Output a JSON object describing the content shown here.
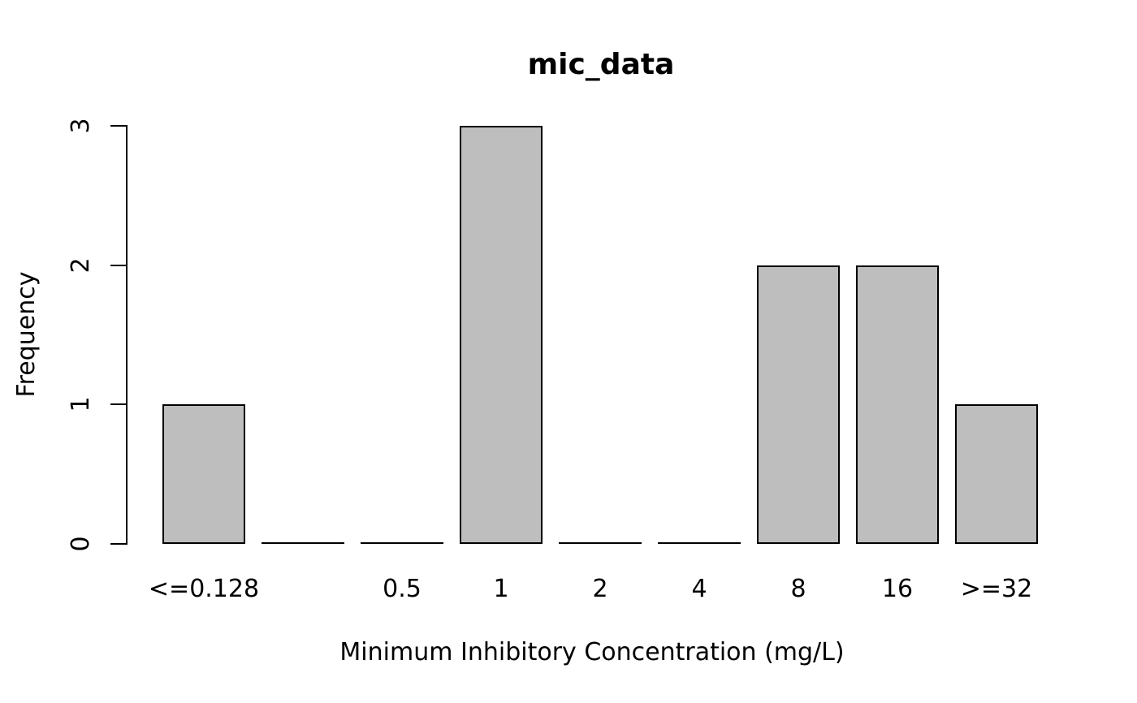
{
  "chart_data": {
    "type": "bar",
    "title": "mic_data",
    "xlabel": "Minimum Inhibitory Concentration (mg/L)",
    "ylabel": "Frequency",
    "categories": [
      "<=0.128",
      "",
      "0.5",
      "1",
      "2",
      "4",
      "8",
      "16",
      ">=32"
    ],
    "values": [
      1,
      0,
      0,
      3,
      0,
      0,
      2,
      2,
      1
    ],
    "yticks": [
      "0",
      "1",
      "2",
      "3"
    ],
    "ylim": [
      0,
      3
    ],
    "grid": false,
    "legend_position": "none",
    "bar_fill_color": "#bebebe",
    "bar_border_color": "#000000",
    "axis_color": "#000000",
    "background_color": "#ffffff"
  }
}
